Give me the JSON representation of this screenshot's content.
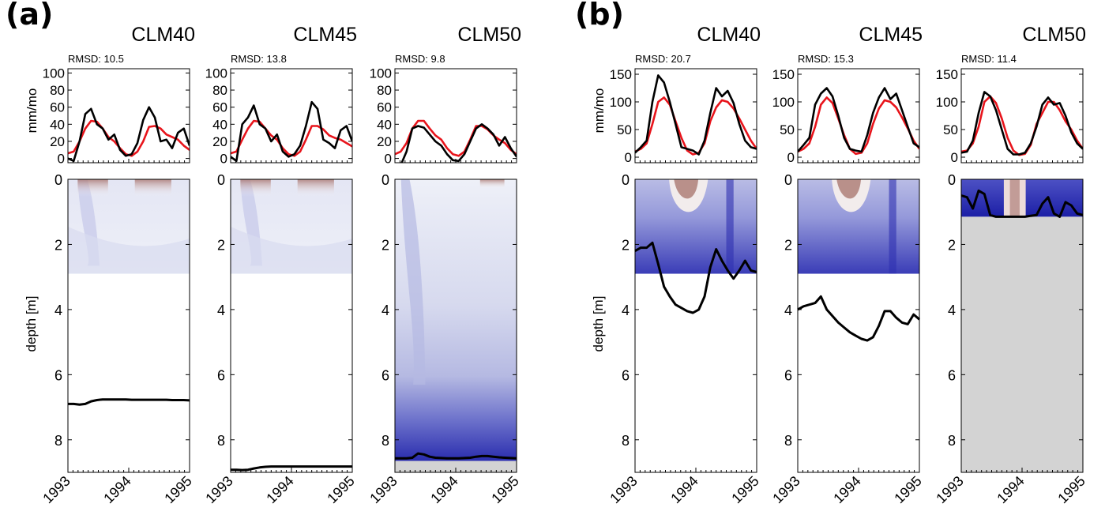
{
  "figure": {
    "group_labels": [
      "(a)",
      "(b)"
    ],
    "ylabel_top": "mm/mo",
    "ylabel_bottom": "depth [m]",
    "colors": {
      "red_line": "#e8141b",
      "black_line": "#000000",
      "blue_dark": "#1c1fa6",
      "blue_light": "#eef0f8",
      "brown": "#a6716a",
      "gray_fill": "#d3d3d3"
    }
  },
  "chart_data": [
    {
      "type": "line",
      "group": "(a)",
      "title": "CLM40",
      "rmsd_label": "RMSD: 10.5",
      "x_ticks": [
        "1993",
        "1994",
        "1995"
      ],
      "y_ticks": [
        "0",
        "20",
        "40",
        "60",
        "80",
        "100"
      ],
      "ylim": [
        -5,
        105
      ],
      "series": [
        {
          "color": "#e8141b",
          "values": [
            6,
            8,
            20,
            35,
            44,
            43,
            35,
            25,
            20,
            12,
            5,
            3,
            8,
            20,
            37,
            38,
            35,
            28,
            25,
            22,
            15,
            10
          ]
        },
        {
          "color": "#000000",
          "values": [
            0,
            -3,
            20,
            52,
            58,
            40,
            35,
            22,
            28,
            10,
            3,
            5,
            18,
            45,
            60,
            48,
            20,
            22,
            12,
            30,
            35,
            15
          ]
        }
      ],
      "depth": {
        "ylim": [
          9,
          0
        ],
        "y_ticks": [
          "0",
          "2",
          "4",
          "6",
          "8"
        ],
        "shaded_to": 2.9,
        "fill_style": "light",
        "gray_below": null,
        "line_depths": [
          6.9,
          6.9,
          6.92,
          6.9,
          6.82,
          6.78,
          6.76,
          6.76,
          6.76,
          6.76,
          6.76,
          6.77,
          6.77,
          6.77,
          6.77,
          6.77,
          6.77,
          6.77,
          6.78,
          6.78,
          6.78,
          6.79
        ]
      }
    },
    {
      "type": "line",
      "group": "(a)",
      "title": "CLM45",
      "rmsd_label": "RMSD: 13.8",
      "x_ticks": [
        "1993",
        "1994",
        "1995"
      ],
      "y_ticks": [
        "0",
        "20",
        "40",
        "60",
        "80",
        "100"
      ],
      "ylim": [
        -5,
        105
      ],
      "series": [
        {
          "color": "#e8141b",
          "values": [
            6,
            8,
            22,
            35,
            44,
            43,
            35,
            27,
            22,
            12,
            5,
            3,
            8,
            22,
            38,
            38,
            34,
            27,
            24,
            22,
            18,
            14
          ]
        },
        {
          "color": "#000000",
          "values": [
            2,
            -3,
            40,
            48,
            62,
            40,
            35,
            20,
            28,
            8,
            2,
            5,
            15,
            38,
            66,
            58,
            22,
            18,
            12,
            33,
            38,
            20
          ]
        }
      ],
      "depth": {
        "ylim": [
          9,
          0
        ],
        "y_ticks": [
          "0",
          "2",
          "4",
          "6",
          "8"
        ],
        "shaded_to": 2.9,
        "fill_style": "light",
        "gray_below": null,
        "line_depths": [
          8.92,
          8.92,
          8.93,
          8.92,
          8.88,
          8.85,
          8.83,
          8.82,
          8.82,
          8.82,
          8.82,
          8.82,
          8.82,
          8.82,
          8.82,
          8.82,
          8.82,
          8.82,
          8.82,
          8.82,
          8.82,
          8.82
        ]
      }
    },
    {
      "type": "line",
      "group": "(a)",
      "title": "CLM50",
      "rmsd_label": "RMSD: 9.8",
      "x_ticks": [
        "1993",
        "1994",
        "1995"
      ],
      "y_ticks": [
        "0",
        "20",
        "40",
        "60",
        "80",
        "100"
      ],
      "ylim": [
        -5,
        105
      ],
      "series": [
        {
          "color": "#e8141b",
          "values": [
            5,
            8,
            18,
            35,
            44,
            44,
            35,
            27,
            22,
            12,
            5,
            3,
            8,
            22,
            38,
            38,
            34,
            27,
            22,
            18,
            10,
            5
          ]
        },
        {
          "color": "#000000",
          "values": [
            -12,
            -8,
            8,
            35,
            38,
            36,
            28,
            20,
            15,
            5,
            -2,
            -3,
            5,
            20,
            35,
            40,
            35,
            28,
            15,
            25,
            12,
            2
          ]
        }
      ],
      "depth": {
        "ylim": [
          9,
          0
        ],
        "y_ticks": [
          "0",
          "2",
          "4",
          "6",
          "8"
        ],
        "shaded_to": 8.65,
        "fill_style": "deep",
        "gray_below": 8.65,
        "line_depths": [
          8.57,
          8.57,
          8.57,
          8.55,
          8.42,
          8.45,
          8.52,
          8.55,
          8.56,
          8.57,
          8.57,
          8.57,
          8.56,
          8.55,
          8.52,
          8.5,
          8.5,
          8.52,
          8.54,
          8.55,
          8.56,
          8.57
        ]
      }
    },
    {
      "type": "line",
      "group": "(b)",
      "title": "CLM40",
      "rmsd_label": "RMSD: 20.7",
      "x_ticks": [
        "1993",
        "1994",
        "1995"
      ],
      "y_ticks": [
        "0",
        "50",
        "100",
        "150"
      ],
      "ylim": [
        -10,
        160
      ],
      "series": [
        {
          "color": "#e8141b",
          "values": [
            10,
            15,
            25,
            60,
            100,
            108,
            95,
            65,
            35,
            12,
            5,
            8,
            25,
            65,
            90,
            103,
            100,
            88,
            70,
            50,
            30,
            15
          ]
        },
        {
          "color": "#000000",
          "values": [
            8,
            18,
            30,
            100,
            148,
            135,
            100,
            60,
            18,
            15,
            12,
            5,
            30,
            80,
            125,
            110,
            120,
            98,
            60,
            30,
            18,
            15
          ]
        }
      ],
      "depth": {
        "ylim": [
          9,
          0
        ],
        "y_ticks": [
          "0",
          "2",
          "4",
          "6",
          "8"
        ],
        "shaded_to": 2.9,
        "fill_style": "deep",
        "gray_below": null,
        "line_depths": [
          2.2,
          2.1,
          2.1,
          1.95,
          2.6,
          3.3,
          3.6,
          3.85,
          3.95,
          4.05,
          4.1,
          4.0,
          3.6,
          2.7,
          2.15,
          2.5,
          2.8,
          3.05,
          2.8,
          2.5,
          2.8,
          2.85
        ]
      }
    },
    {
      "type": "line",
      "group": "(b)",
      "title": "CLM45",
      "rmsd_label": "RMSD: 15.3",
      "x_ticks": [
        "1993",
        "1994",
        "1995"
      ],
      "y_ticks": [
        "0",
        "50",
        "100",
        "150"
      ],
      "ylim": [
        -10,
        160
      ],
      "series": [
        {
          "color": "#e8141b",
          "values": [
            10,
            15,
            25,
            55,
            95,
            108,
            98,
            70,
            40,
            15,
            6,
            8,
            25,
            60,
            88,
            103,
            100,
            90,
            72,
            52,
            30,
            15
          ]
        },
        {
          "color": "#000000",
          "values": [
            10,
            22,
            35,
            95,
            115,
            125,
            110,
            75,
            35,
            15,
            12,
            10,
            40,
            80,
            108,
            125,
            105,
            115,
            85,
            55,
            25,
            18
          ]
        }
      ],
      "depth": {
        "ylim": [
          9,
          0
        ],
        "y_ticks": [
          "0",
          "2",
          "4",
          "6",
          "8"
        ],
        "shaded_to": 2.9,
        "fill_style": "deep",
        "gray_below": null,
        "line_depths": [
          4.0,
          3.9,
          3.85,
          3.8,
          3.6,
          4.0,
          4.2,
          4.4,
          4.55,
          4.7,
          4.8,
          4.9,
          4.95,
          4.85,
          4.5,
          4.05,
          4.05,
          4.25,
          4.4,
          4.45,
          4.15,
          4.3
        ]
      }
    },
    {
      "type": "line",
      "group": "(b)",
      "title": "CLM50",
      "rmsd_label": "RMSD: 11.4",
      "x_ticks": [
        "1993",
        "1994",
        "1995"
      ],
      "y_ticks": [
        "0",
        "50",
        "100",
        "150"
      ],
      "ylim": [
        -10,
        160
      ],
      "series": [
        {
          "color": "#e8141b",
          "values": [
            10,
            12,
            25,
            55,
            100,
            110,
            98,
            70,
            35,
            12,
            4,
            6,
            22,
            60,
            80,
            100,
            100,
            85,
            65,
            50,
            30,
            15
          ]
        },
        {
          "color": "#000000",
          "values": [
            8,
            10,
            30,
            80,
            118,
            110,
            85,
            50,
            15,
            5,
            5,
            8,
            25,
            55,
            95,
            108,
            95,
            98,
            75,
            45,
            25,
            15
          ]
        }
      ],
      "depth": {
        "ylim": [
          9,
          0
        ],
        "y_ticks": [
          "0",
          "2",
          "4",
          "6",
          "8"
        ],
        "shaded_to": 1.15,
        "fill_style": "surface",
        "gray_below": 1.15,
        "line_depths": [
          0.5,
          0.55,
          0.9,
          0.35,
          0.45,
          1.1,
          1.15,
          1.15,
          1.15,
          1.15,
          1.15,
          1.15,
          1.12,
          1.1,
          0.75,
          0.55,
          1.05,
          1.15,
          0.7,
          0.8,
          1.05,
          1.1
        ]
      }
    }
  ]
}
